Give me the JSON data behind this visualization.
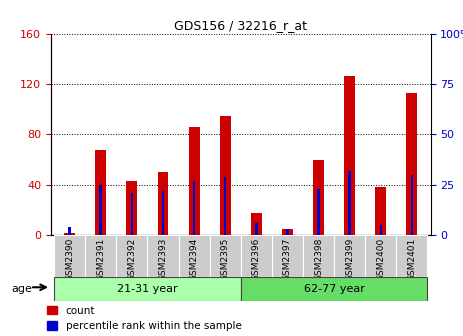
{
  "title": "GDS156 / 32216_r_at",
  "samples": [
    "GSM2390",
    "GSM2391",
    "GSM2392",
    "GSM2393",
    "GSM2394",
    "GSM2395",
    "GSM2396",
    "GSM2397",
    "GSM2398",
    "GSM2399",
    "GSM2400",
    "GSM2401"
  ],
  "count": [
    2,
    68,
    43,
    50,
    86,
    95,
    18,
    5,
    60,
    126,
    38,
    113
  ],
  "percentile": [
    4,
    25,
    21,
    22,
    27,
    29,
    6,
    3,
    23,
    32,
    5,
    30
  ],
  "groups": [
    {
      "label": "21-31 year",
      "start": 0,
      "end": 5
    },
    {
      "label": "62-77 year",
      "start": 6,
      "end": 11
    }
  ],
  "group_color_light": "#aaffaa",
  "group_color_dark": "#66dd66",
  "bar_color_red": "#cc0000",
  "bar_color_blue": "#0000cc",
  "ylim_left": [
    0,
    160
  ],
  "ylim_right": [
    0,
    100
  ],
  "yticks_left": [
    0,
    40,
    80,
    120,
    160
  ],
  "yticks_right": [
    0,
    25,
    50,
    75,
    100
  ],
  "bg_color": "#ffffff",
  "tick_bg_color": "#cccccc",
  "age_label": "age",
  "legend_count": "count",
  "legend_percentile": "percentile rank within the sample",
  "red_bar_width": 0.35,
  "blue_bar_width": 0.08
}
